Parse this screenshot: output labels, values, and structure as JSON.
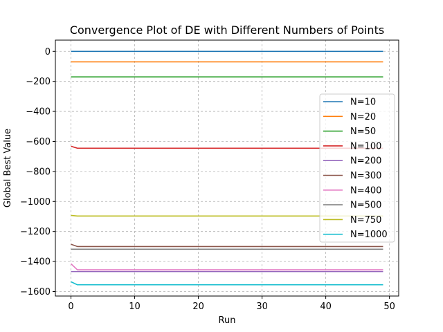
{
  "chart_data": {
    "type": "line",
    "title": "Convergence Plot of DE with Different Numbers of Points",
    "xlabel": "Run",
    "ylabel": "Global Best Value",
    "xlim": [
      -2.45,
      51.45
    ],
    "ylim": [
      -1630,
      75
    ],
    "xticks": [
      0,
      10,
      20,
      30,
      40,
      50
    ],
    "yticks": [
      0,
      -200,
      -400,
      -600,
      -800,
      -1000,
      -1200,
      -1400,
      -1600
    ],
    "xtick_labels": [
      "0",
      "10",
      "20",
      "30",
      "40",
      "50"
    ],
    "ytick_labels": [
      "0",
      "−200",
      "−400",
      "−600",
      "−800",
      "−1000",
      "−1200",
      "−1400",
      "−1600"
    ],
    "grid": true,
    "legend_position": "right",
    "runs": 50,
    "series": [
      {
        "name": "N=10",
        "color": "#1f77b4",
        "start": 0,
        "final": 0
      },
      {
        "name": "N=20",
        "color": "#ff7f0e",
        "start": -70,
        "final": -70
      },
      {
        "name": "N=50",
        "color": "#2ca02c",
        "start": -170,
        "final": -170
      },
      {
        "name": "N=100",
        "color": "#d62728",
        "start": -632,
        "final": -645
      },
      {
        "name": "N=200",
        "color": "#9467bd",
        "start": -1467,
        "final": -1467
      },
      {
        "name": "N=300",
        "color": "#8c564b",
        "start": -1285,
        "final": -1300
      },
      {
        "name": "N=400",
        "color": "#e377c2",
        "start": -1415,
        "final": -1455
      },
      {
        "name": "N=500",
        "color": "#7f7f7f",
        "start": -1318,
        "final": -1318
      },
      {
        "name": "N=750",
        "color": "#bcbd22",
        "start": -1093,
        "final": -1097
      },
      {
        "name": "N=1000",
        "color": "#17becf",
        "start": -1535,
        "final": -1555
      }
    ]
  }
}
